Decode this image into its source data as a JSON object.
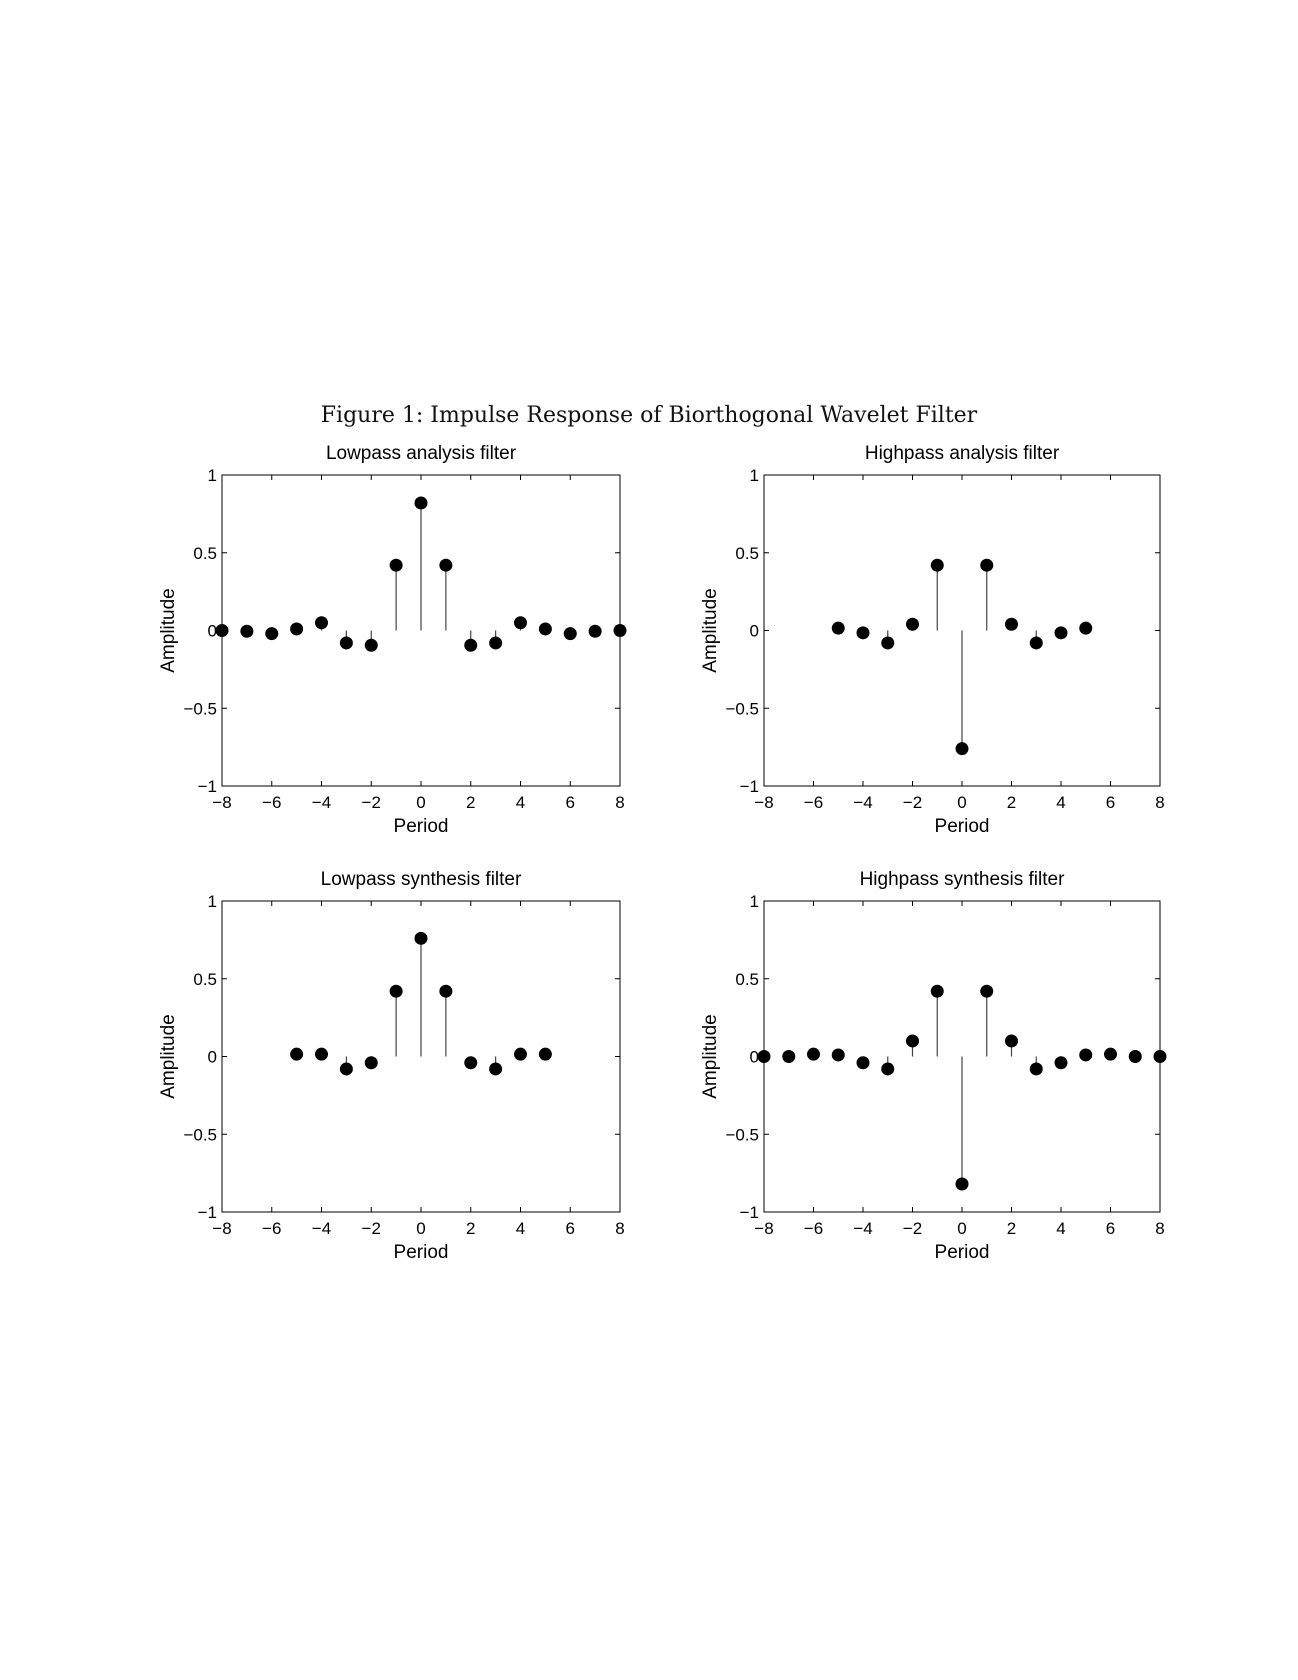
{
  "caption": "Figure 1: Impulse Response of Biorthogonal Wavelet Filter",
  "chart_data": [
    {
      "type": "stem",
      "title": "Lowpass analysis filter",
      "xlabel": "Period",
      "ylabel": "Amplitude",
      "xlim": [
        -8,
        8
      ],
      "ylim": [
        -1,
        1
      ],
      "xticks": [
        -8,
        -6,
        -4,
        -2,
        0,
        2,
        4,
        6,
        8
      ],
      "xtick_labels": [
        "−8",
        "−6",
        "−4",
        "−2",
        "0",
        "2",
        "4",
        "6",
        "8"
      ],
      "yticks": [
        -1,
        -0.5,
        0,
        0.5,
        1
      ],
      "ytick_labels": [
        "−1",
        "−0.5",
        "0",
        "0.5",
        "1"
      ],
      "x": [
        -8,
        -7,
        -6,
        -5,
        -4,
        -3,
        -2,
        -1,
        0,
        1,
        2,
        3,
        4,
        5,
        6,
        7,
        8
      ],
      "values": [
        0,
        -0.005,
        -0.02,
        0.01,
        0.05,
        -0.08,
        -0.095,
        0.42,
        0.82,
        0.42,
        -0.095,
        -0.08,
        0.05,
        0.01,
        -0.02,
        -0.005,
        0
      ]
    },
    {
      "type": "stem",
      "title": "Highpass analysis filter",
      "xlabel": "Period",
      "ylabel": "Amplitude",
      "xlim": [
        -8,
        8
      ],
      "ylim": [
        -1,
        1
      ],
      "xticks": [
        -8,
        -6,
        -4,
        -2,
        0,
        2,
        4,
        6,
        8
      ],
      "xtick_labels": [
        "−8",
        "−6",
        "−4",
        "−2",
        "0",
        "2",
        "4",
        "6",
        "8"
      ],
      "yticks": [
        -1,
        -0.5,
        0,
        0.5,
        1
      ],
      "ytick_labels": [
        "−1",
        "−0.5",
        "0",
        "0.5",
        "1"
      ],
      "x": [
        -5,
        -4,
        -3,
        -2,
        -1,
        0,
        1,
        2,
        3,
        4,
        5
      ],
      "values": [
        0.015,
        -0.015,
        -0.08,
        0.04,
        0.42,
        -0.76,
        0.42,
        0.04,
        -0.08,
        -0.015,
        0.015
      ]
    },
    {
      "type": "stem",
      "title": "Lowpass synthesis filter",
      "xlabel": "Period",
      "ylabel": "Amplitude",
      "xlim": [
        -8,
        8
      ],
      "ylim": [
        -1,
        1
      ],
      "xticks": [
        -8,
        -6,
        -4,
        -2,
        0,
        2,
        4,
        6,
        8
      ],
      "xtick_labels": [
        "−8",
        "−6",
        "−4",
        "−2",
        "0",
        "2",
        "4",
        "6",
        "8"
      ],
      "yticks": [
        -1,
        -0.5,
        0,
        0.5,
        1
      ],
      "ytick_labels": [
        "−1",
        "−0.5",
        "0",
        "0.5",
        "1"
      ],
      "x": [
        -5,
        -4,
        -3,
        -2,
        -1,
        0,
        1,
        2,
        3,
        4,
        5
      ],
      "values": [
        0.015,
        0.015,
        -0.08,
        -0.04,
        0.42,
        0.76,
        0.42,
        -0.04,
        -0.08,
        0.015,
        0.015
      ]
    },
    {
      "type": "stem",
      "title": "Highpass synthesis filter",
      "xlabel": "Period",
      "ylabel": "Amplitude",
      "xlim": [
        -8,
        8
      ],
      "ylim": [
        -1,
        1
      ],
      "xticks": [
        -8,
        -6,
        -4,
        -2,
        0,
        2,
        4,
        6,
        8
      ],
      "xtick_labels": [
        "−8",
        "−6",
        "−4",
        "−2",
        "0",
        "2",
        "4",
        "6",
        "8"
      ],
      "yticks": [
        -1,
        -0.5,
        0,
        0.5,
        1
      ],
      "ytick_labels": [
        "−1",
        "−0.5",
        "0",
        "0.5",
        "1"
      ],
      "x": [
        -8,
        -7,
        -6,
        -5,
        -4,
        -3,
        -2,
        -1,
        0,
        1,
        2,
        3,
        4,
        5,
        6,
        7,
        8
      ],
      "values": [
        0,
        0,
        0.015,
        0.01,
        -0.04,
        -0.08,
        0.1,
        0.42,
        -0.82,
        0.42,
        0.1,
        -0.08,
        -0.04,
        0.01,
        0.015,
        0,
        0
      ]
    }
  ]
}
